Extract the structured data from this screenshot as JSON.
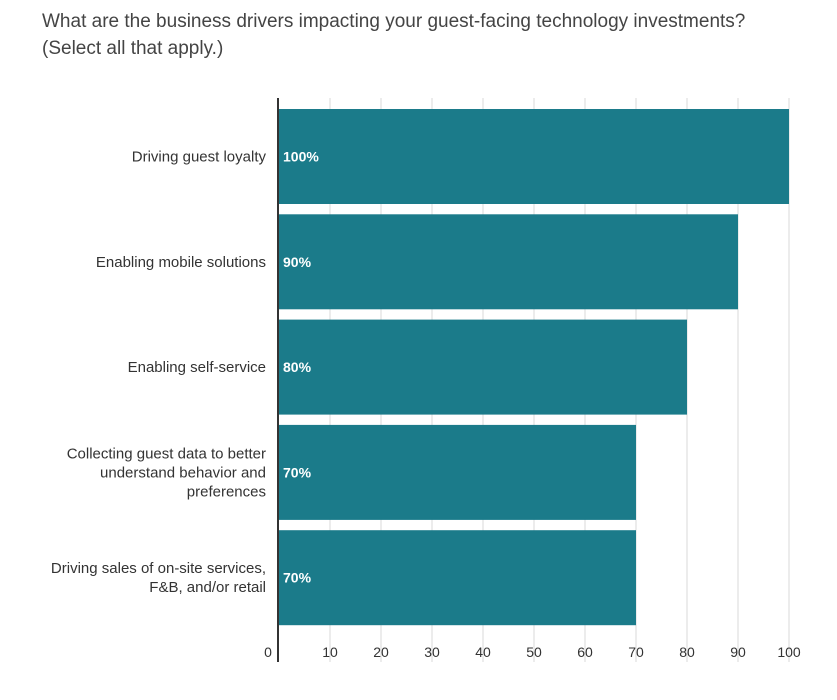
{
  "title_line1": "What are the business drivers impacting your guest-facing technology investments?",
  "title_line2": "(Select all that apply.)",
  "chart_data": {
    "type": "bar",
    "orientation": "horizontal",
    "categories": [
      "Driving guest loyalty",
      "Enabling mobile solutions",
      "Enabling self-service",
      "Collecting guest data to better understand behavior and preferences",
      "Driving sales of on-site services, F&B, and/or retail"
    ],
    "category_lines": [
      [
        "Driving guest loyalty"
      ],
      [
        "Enabling mobile solutions"
      ],
      [
        "Enabling self-service"
      ],
      [
        "Collecting guest data to better",
        "understand behavior and",
        "preferences"
      ],
      [
        "Driving sales of on-site services,",
        "F&B, and/or retail"
      ]
    ],
    "values": [
      100,
      90,
      80,
      70,
      70
    ],
    "value_labels": [
      "100%",
      "90%",
      "80%",
      "70%",
      "70%"
    ],
    "xlim": [
      0,
      100
    ],
    "xticks": [
      "0",
      "10",
      "20",
      "30",
      "40",
      "50",
      "60",
      "70",
      "80",
      "90",
      "100"
    ],
    "grid": true,
    "bar_color": "#1b7b8a",
    "grid_color": "#d9d9d9",
    "axis_color": "#333333"
  }
}
